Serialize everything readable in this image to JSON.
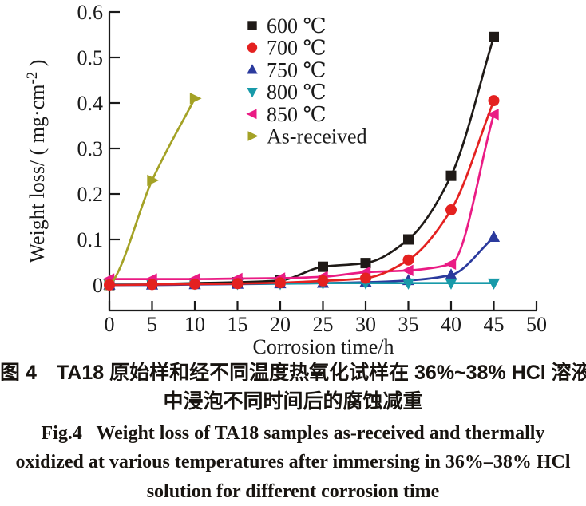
{
  "figure": {
    "caption_zh_line1": "图 4　TA18 原始样和经不同温度热氧化试样在 36%~38% HCl 溶液",
    "caption_zh_line2": "中浸泡不同时间后的腐蚀减重",
    "caption_en_line1": "Fig.4   Weight loss of TA18 samples as-received and thermally",
    "caption_en_line2": "oxidized at various temperatures after immersing in 36%–38% HCl",
    "caption_en_line3": "solution for different corrosion time"
  },
  "chart_data": {
    "type": "line",
    "title": "",
    "xlabel": "Corrosion time/h",
    "ylabel": "Weight loss/ ( mg·cm⁻² )",
    "ylabel_parts": {
      "prefix": "Weight loss/ ( mg·cm",
      "sup": "-2",
      "suffix": " )"
    },
    "xlim": [
      0,
      50
    ],
    "ylim": [
      -0.06,
      0.6
    ],
    "grid": false,
    "legend_position": "upper-left-inside",
    "xticks": [
      0,
      5,
      10,
      15,
      20,
      25,
      30,
      35,
      40,
      45,
      50
    ],
    "xtick_labels": [
      "0",
      "5",
      "10",
      "15",
      "20",
      "25",
      "30",
      "35",
      "40",
      "45",
      "50"
    ],
    "yticks": [
      0,
      0.1,
      0.2,
      0.3,
      0.4,
      0.5,
      0.6
    ],
    "ytick_labels": [
      "0",
      "0.1",
      "0.2",
      "0.3",
      "0.4",
      "0.5",
      "0.6"
    ],
    "x": [
      0,
      5,
      10,
      15,
      20,
      25,
      30,
      35,
      40,
      45
    ],
    "series": [
      {
        "key": "600c",
        "name": "600 ℃",
        "color": "#1f1a17",
        "marker": "square",
        "values": [
          0,
          0.002,
          0.004,
          0.006,
          0.01,
          0.04,
          0.048,
          0.1,
          0.24,
          0.545
        ]
      },
      {
        "key": "700c",
        "name": "700 ℃",
        "color": "#e42120",
        "marker": "circle",
        "values": [
          0,
          0.001,
          0.002,
          0.003,
          0.005,
          0.009,
          0.015,
          0.055,
          0.165,
          0.405
        ]
      },
      {
        "key": "750c",
        "name": "750 ℃",
        "color": "#2b3a9d",
        "marker": "triangle-up",
        "values": [
          0,
          0,
          0.001,
          0.002,
          0.003,
          0.004,
          0.006,
          0.01,
          0.022,
          0.105
        ]
      },
      {
        "key": "800c",
        "name": "800 ℃",
        "color": "#189aa9",
        "marker": "triangle-down",
        "values": [
          0.002,
          0.002,
          0.003,
          0.003,
          0.003,
          0.004,
          0.004,
          0.004,
          0.004,
          0.004
        ]
      },
      {
        "key": "850c",
        "name": "850 ℃",
        "color": "#ea1b84",
        "marker": "triangle-left",
        "values": [
          0.013,
          0.013,
          0.013,
          0.014,
          0.015,
          0.018,
          0.028,
          0.032,
          0.046,
          0.375
        ]
      },
      {
        "key": "as-received",
        "name": "As-received",
        "color": "#a4a226",
        "marker": "triangle-right",
        "x": [
          0,
          5,
          10
        ],
        "values": [
          0,
          0.23,
          0.41
        ]
      }
    ],
    "draw_order": [
      0,
      2,
      3,
      4,
      5,
      1
    ]
  }
}
